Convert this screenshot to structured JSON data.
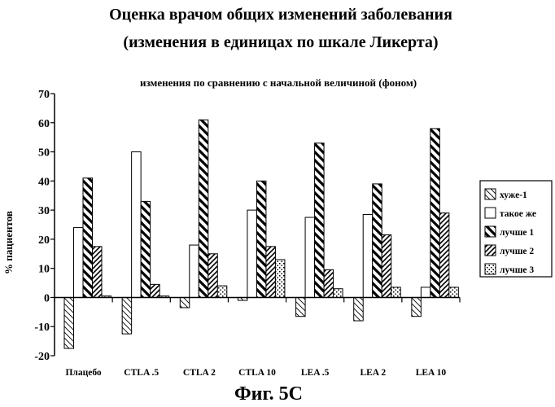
{
  "chart_data": {
    "type": "bar",
    "title_line1": "Оценка врачом общих изменений заболевания",
    "title_line2": "(изменения в единицах по шкале Ликерта)",
    "subtitle": "изменения по сравнению с начальной величиной (фоном)",
    "ylabel": "% пациентов",
    "xlabel": "",
    "caption": "Фиг. 5С",
    "ylim": [
      -20,
      70
    ],
    "yticks": [
      -20,
      -10,
      0,
      10,
      20,
      30,
      40,
      50,
      60,
      70
    ],
    "grid": false,
    "legend_position": "right",
    "categories": [
      "Плацебо",
      "CTLA .5",
      "CTLA 2",
      "CTLA 10",
      "LEA .5",
      "LEA 2",
      "LEA 10"
    ],
    "series": [
      {
        "name": "хуже-1",
        "pattern": "hatch-light-backslash",
        "values": [
          -17.5,
          -12.5,
          -3.5,
          -1,
          -6.5,
          -8,
          -6.5
        ]
      },
      {
        "name": "такое же",
        "pattern": "plain-white",
        "values": [
          24,
          50,
          18,
          30,
          27.5,
          28.5,
          3.5
        ]
      },
      {
        "name": "лучше 1",
        "pattern": "hatch-dense-backslash",
        "values": [
          41,
          33,
          61,
          40,
          53,
          39,
          58
        ]
      },
      {
        "name": "лучше 2",
        "pattern": "hatch-forward-slash",
        "values": [
          17.5,
          4.5,
          15,
          17.5,
          9.5,
          21.5,
          29
        ]
      },
      {
        "name": "лучше 3",
        "pattern": "dotted",
        "values": [
          0.5,
          0.5,
          4,
          13,
          3,
          3.5,
          3.5
        ]
      }
    ]
  }
}
